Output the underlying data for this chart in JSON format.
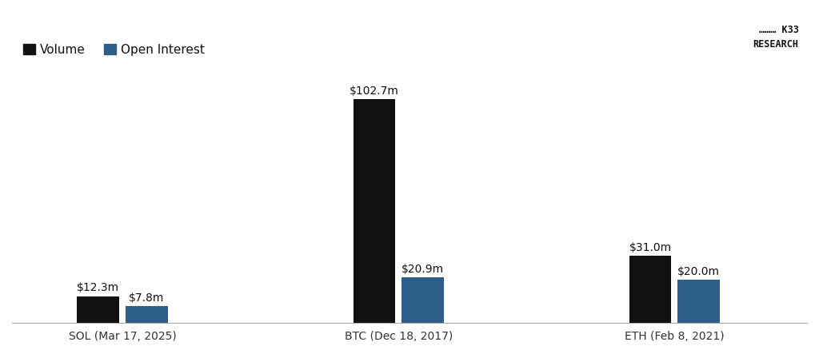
{
  "groups": [
    "SOL (Mar 17, 2025)",
    "BTC (Dec 18, 2017)",
    "ETH (Feb 8, 2021)"
  ],
  "volume_values": [
    12.3,
    102.7,
    31.0
  ],
  "open_interest_values": [
    7.8,
    20.9,
    20.0
  ],
  "volume_labels": [
    "$12.3m",
    "$102.7m",
    "$31.0m"
  ],
  "oi_labels": [
    "$7.8m",
    "$20.9m",
    "$20.0m"
  ],
  "volume_color": "#111111",
  "oi_color": "#2e5f8a",
  "background_color": "#ffffff",
  "bar_width": 0.38,
  "ylim": [
    0,
    118
  ],
  "legend_volume": "Volume",
  "legend_oi": "Open Interest",
  "label_fontsize": 10,
  "tick_fontsize": 10,
  "legend_fontsize": 11
}
